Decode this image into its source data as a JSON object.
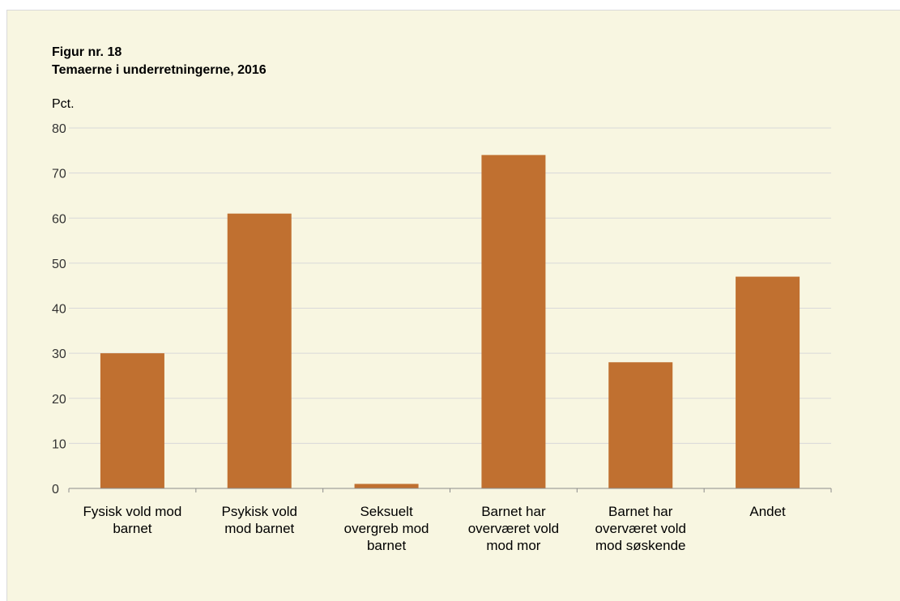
{
  "figure": {
    "number": "Figur nr. 18",
    "title": "Temaerne i underretningerne, 2016"
  },
  "chart_data": {
    "type": "bar",
    "title": "Temaerne i underretningerne, 2016",
    "ylabel": "Pct.",
    "xlabel": "",
    "ylim": [
      0,
      80
    ],
    "yticks": [
      0,
      10,
      20,
      30,
      40,
      50,
      60,
      70,
      80
    ],
    "grid": true,
    "categories": [
      [
        "Fysisk vold mod",
        "barnet"
      ],
      [
        "Psykisk vold",
        "mod barnet"
      ],
      [
        "Seksuelt",
        "overgreb mod",
        "barnet"
      ],
      [
        "Barnet har",
        "overværet vold",
        "mod mor"
      ],
      [
        "Barnet har",
        "overværet vold",
        "mod søskende"
      ],
      [
        "Andet"
      ]
    ],
    "values": [
      30,
      61,
      1,
      74,
      28,
      47
    ],
    "bar_color": "#c07030",
    "background_color": "#f8f6e1",
    "gridline_color": "#d9d9d9"
  }
}
